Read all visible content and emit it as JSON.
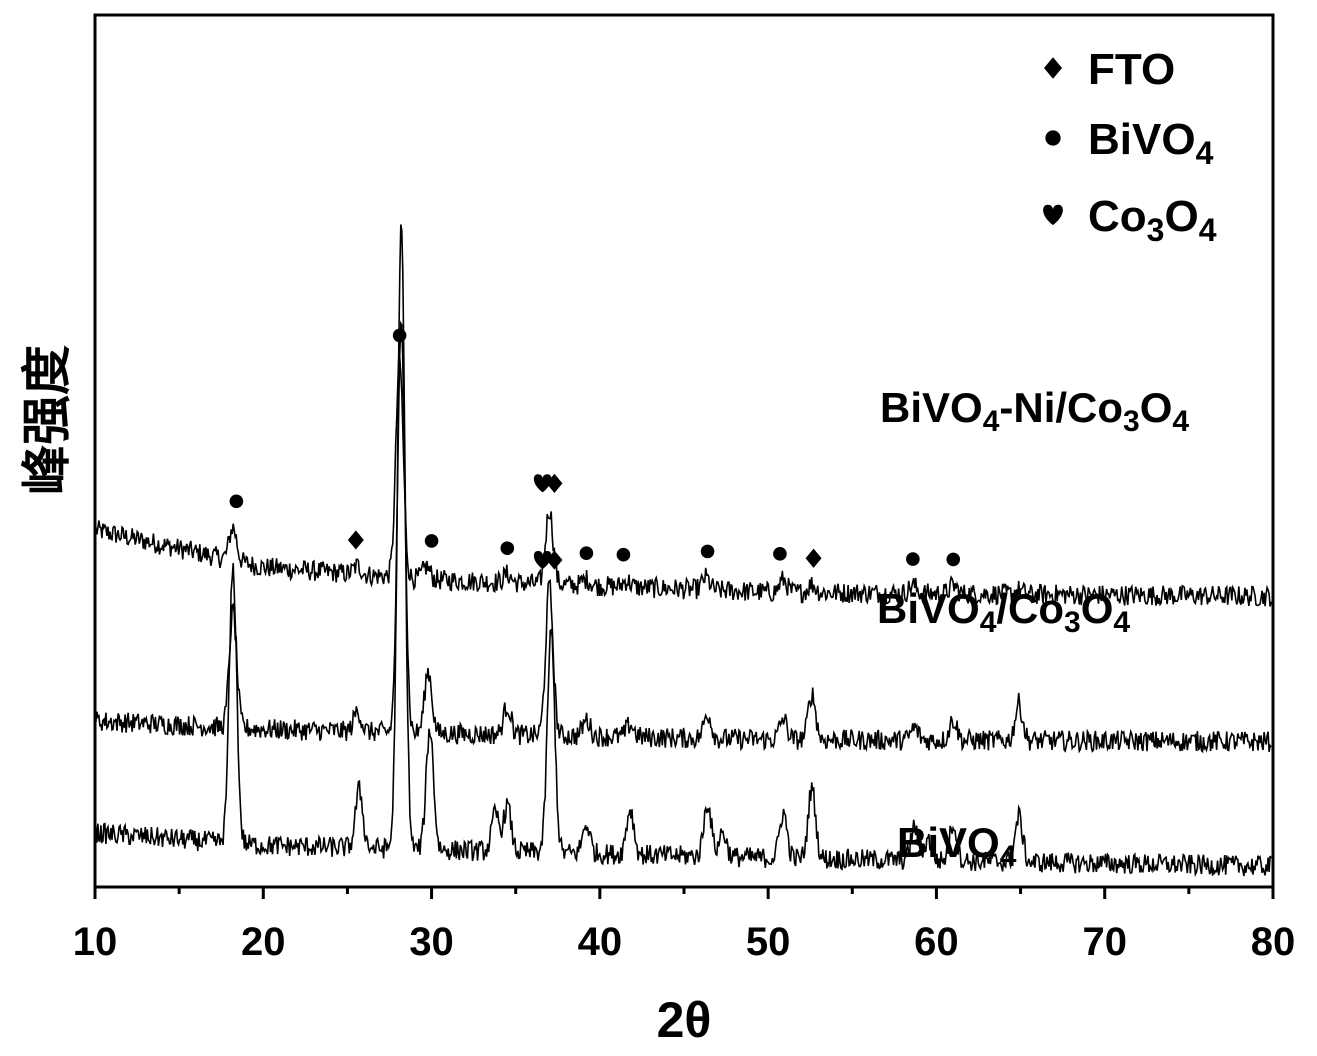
{
  "chart_data": {
    "type": "line",
    "xlabel": "2θ",
    "ylabel": "峰强度",
    "xlim": [
      10,
      80
    ],
    "xticks": [
      10,
      20,
      30,
      40,
      50,
      60,
      70,
      80
    ],
    "xtick_labels": [
      "10",
      "20",
      "30",
      "40",
      "50",
      "60",
      "70",
      "80"
    ],
    "yticks_shown": false,
    "grid": false,
    "legend": {
      "placement": "top-right",
      "entries": [
        {
          "marker": "diamond",
          "base": "FTO",
          "sub": ""
        },
        {
          "marker": "circle",
          "base": "BiVO",
          "sub": "4"
        },
        {
          "marker": "heart",
          "base": "Co",
          "sub": "3",
          "base2": "O",
          "sub2": "4"
        }
      ]
    },
    "series": [
      {
        "key": "bivo4_ni_co3o4",
        "label_parts": [
          [
            "BiVO",
            ""
          ],
          [
            "4",
            "sub"
          ],
          [
            "-Ni/Co",
            ""
          ],
          [
            "3",
            "sub"
          ],
          [
            "O",
            ""
          ],
          [
            "4",
            "sub"
          ]
        ],
        "baseline": 0.7,
        "trend": [
          [
            10,
            0.16
          ],
          [
            20,
            0.07
          ],
          [
            30,
            0.04
          ],
          [
            50,
            0.01
          ],
          [
            80,
            0.0
          ]
        ],
        "peaks": [
          [
            18.2,
            0.08
          ],
          [
            25.6,
            0.02
          ],
          [
            28.1,
            0.52
          ],
          [
            29.7,
            0.03
          ],
          [
            34.5,
            0.02
          ],
          [
            37.0,
            0.18
          ],
          [
            39.2,
            0.015
          ],
          [
            41.6,
            0.015
          ],
          [
            46.3,
            0.03
          ],
          [
            50.9,
            0.03
          ],
          [
            52.6,
            0.02
          ],
          [
            58.6,
            0.02
          ],
          [
            61.0,
            0.02
          ],
          [
            64.9,
            0.01
          ]
        ],
        "markers": [
          {
            "type": "circle",
            "x": 18.4
          },
          {
            "type": "diamond",
            "x": 25.5
          },
          {
            "type": "circle",
            "x": 28.1
          },
          {
            "type": "circle",
            "x": 30.0
          },
          {
            "type": "circle",
            "x": 34.5
          },
          {
            "type": "heart",
            "x": 36.6
          },
          {
            "type": "diamond",
            "x": 37.3
          },
          {
            "type": "circle",
            "x": 39.2
          },
          {
            "type": "circle",
            "x": 41.4
          },
          {
            "type": "circle",
            "x": 46.4
          },
          {
            "type": "circle",
            "x": 50.7
          },
          {
            "type": "diamond",
            "x": 52.7
          },
          {
            "type": "circle",
            "x": 58.6
          },
          {
            "type": "circle",
            "x": 61.0
          }
        ]
      },
      {
        "key": "bivo4_co3o4",
        "label_parts": [
          [
            "BiVO",
            ""
          ],
          [
            "4",
            "sub"
          ],
          [
            "/Co",
            ""
          ],
          [
            "3",
            "sub"
          ],
          [
            "O",
            ""
          ],
          [
            "4",
            "sub"
          ]
        ],
        "baseline": 0.35,
        "trend": [
          [
            10,
            0.05
          ],
          [
            20,
            0.03
          ],
          [
            30,
            0.02
          ],
          [
            50,
            0.005
          ],
          [
            80,
            0.0
          ]
        ],
        "peaks": [
          [
            18.2,
            0.28
          ],
          [
            25.6,
            0.05
          ],
          [
            28.2,
            0.98
          ],
          [
            29.8,
            0.15
          ],
          [
            34.5,
            0.07
          ],
          [
            37.0,
            0.36
          ],
          [
            39.2,
            0.04
          ],
          [
            41.8,
            0.03
          ],
          [
            46.4,
            0.06
          ],
          [
            50.9,
            0.05
          ],
          [
            52.6,
            0.11
          ],
          [
            58.7,
            0.03
          ],
          [
            61.0,
            0.05
          ],
          [
            64.9,
            0.09
          ]
        ],
        "markers": [
          {
            "type": "heart",
            "x": 36.6
          },
          {
            "type": "diamond",
            "x": 37.3
          }
        ]
      },
      {
        "key": "bivo4",
        "label_parts": [
          [
            "BiVO",
            ""
          ],
          [
            "4",
            "sub"
          ]
        ],
        "baseline": 0.05,
        "trend": [
          [
            10,
            0.08
          ],
          [
            20,
            0.05
          ],
          [
            30,
            0.04
          ],
          [
            50,
            0.02
          ],
          [
            80,
            0.0
          ]
        ],
        "peaks": [
          [
            18.2,
            0.66
          ],
          [
            25.7,
            0.14
          ],
          [
            28.2,
            1.5
          ],
          [
            29.9,
            0.29
          ],
          [
            33.8,
            0.09
          ],
          [
            34.5,
            0.11
          ],
          [
            37.1,
            0.53
          ],
          [
            39.2,
            0.07
          ],
          [
            41.8,
            0.11
          ],
          [
            46.4,
            0.13
          ],
          [
            47.3,
            0.06
          ],
          [
            50.9,
            0.11
          ],
          [
            52.6,
            0.17
          ],
          [
            58.7,
            0.08
          ],
          [
            59.5,
            0.05
          ],
          [
            61.0,
            0.09
          ],
          [
            64.9,
            0.11
          ]
        ],
        "markers": []
      }
    ]
  }
}
